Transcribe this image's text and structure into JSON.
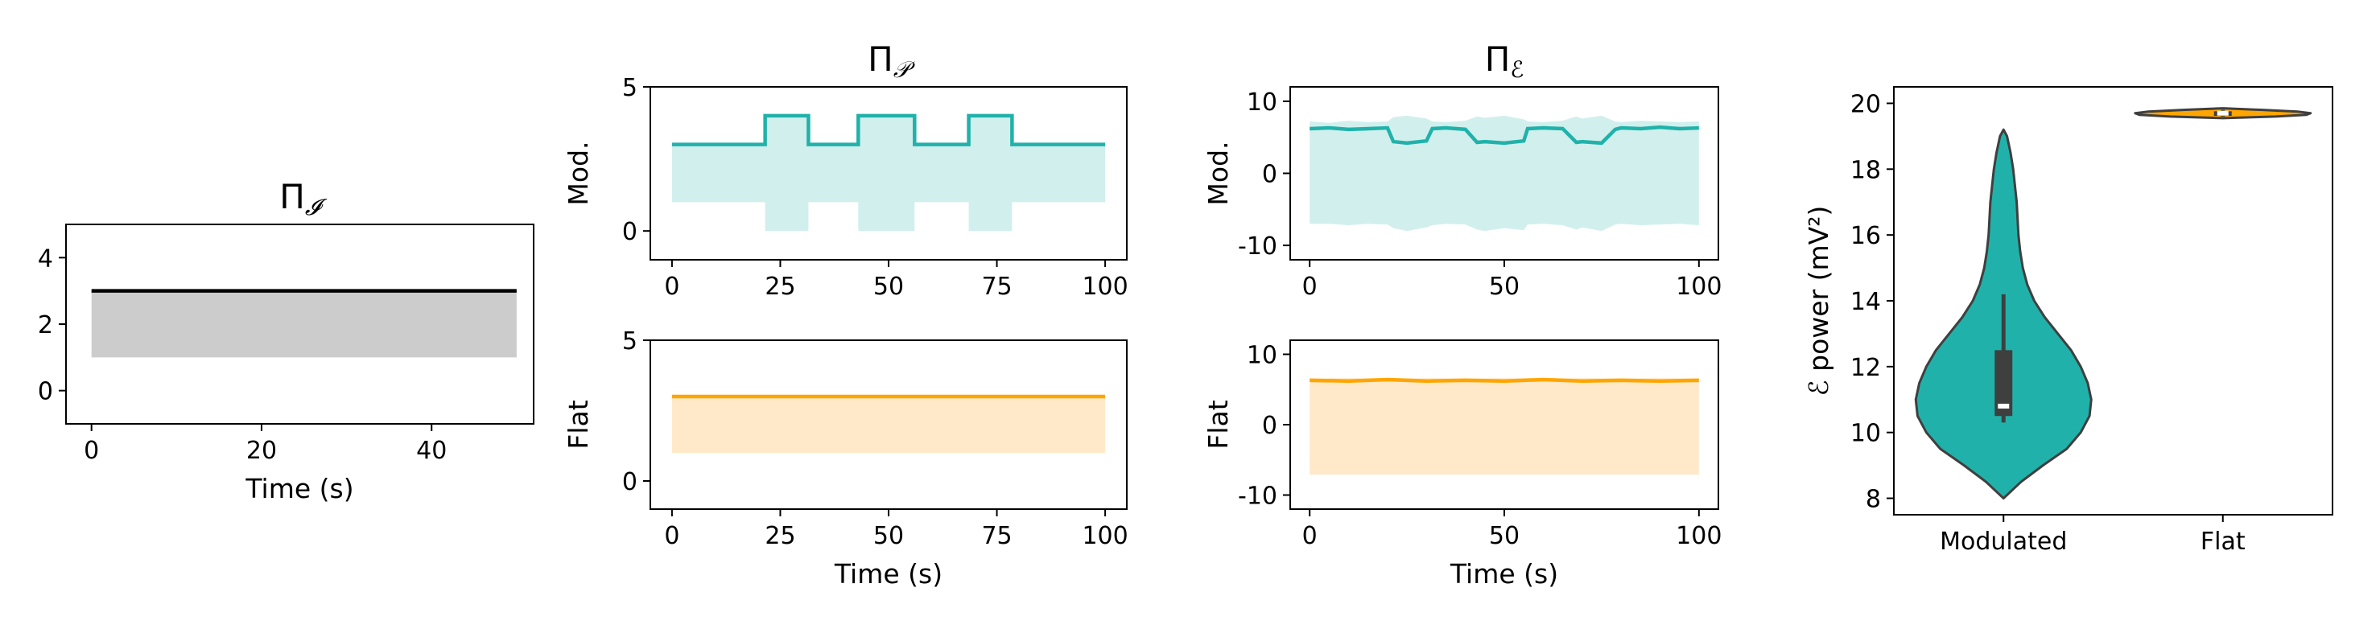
{
  "chart_data": [
    {
      "type": "line",
      "id": "pi_i",
      "title": "Π",
      "title_sub": "𝓘",
      "xlabel": "Time (s)",
      "ylabel": "",
      "xlim": [
        -3,
        52
      ],
      "ylim": [
        -1,
        5
      ],
      "xticks": [
        0,
        20,
        40
      ],
      "yticks": [
        0,
        2,
        4
      ],
      "color": "#000000",
      "band_color": "#cccccc",
      "series": [
        {
          "x": [
            0,
            50
          ],
          "y": [
            3,
            3
          ],
          "lower": [
            1,
            1
          ],
          "upper": [
            3,
            3
          ]
        }
      ]
    },
    {
      "type": "line",
      "id": "pi_p_mod",
      "title": "Π",
      "title_sub": "𝒫",
      "ylabel": "Mod.",
      "xlabel": "",
      "xlim": [
        -5,
        105
      ],
      "ylim": [
        -1,
        5
      ],
      "xticks": [
        0,
        25,
        50,
        75,
        100
      ],
      "yticks": [
        0,
        5
      ],
      "color": "#20b2aa",
      "band_color": "#d1efed",
      "series": [
        {
          "x": [
            0,
            21.5,
            21.5,
            31.5,
            31.5,
            43,
            43,
            56,
            56,
            68.5,
            68.5,
            78.5,
            78.5,
            100
          ],
          "y": [
            3,
            3,
            4,
            4,
            3,
            3,
            4,
            4,
            3,
            3,
            4,
            4,
            3,
            3
          ],
          "lower": [
            1,
            1,
            0,
            0,
            1,
            1,
            0,
            0,
            1,
            1,
            0,
            0,
            1,
            1
          ],
          "upper": [
            3,
            3,
            4,
            4,
            3,
            3,
            4,
            4,
            3,
            3,
            4,
            4,
            3,
            3
          ]
        }
      ]
    },
    {
      "type": "line",
      "id": "pi_p_flat",
      "ylabel": "Flat",
      "xlabel": "Time (s)",
      "xlim": [
        -5,
        105
      ],
      "ylim": [
        -1,
        5
      ],
      "xticks": [
        0,
        25,
        50,
        75,
        100
      ],
      "yticks": [
        0,
        5
      ],
      "color": "#ffa500",
      "band_color": "#ffe9c8",
      "series": [
        {
          "x": [
            0,
            100
          ],
          "y": [
            3,
            3
          ],
          "lower": [
            1,
            1
          ],
          "upper": [
            3,
            3
          ]
        }
      ]
    },
    {
      "type": "line",
      "id": "pi_e_mod",
      "title": "Π",
      "title_sub": "ℰ",
      "ylabel": "Mod.",
      "xlabel": "",
      "xlim": [
        -5,
        105
      ],
      "ylim": [
        -12,
        12
      ],
      "xticks": [
        0,
        50,
        100
      ],
      "yticks": [
        -10,
        0,
        10
      ],
      "color": "#20b2aa",
      "band_color": "#d1efed",
      "series": [
        {
          "x": [
            0,
            5,
            10,
            15,
            20,
            21.5,
            25,
            30,
            31.5,
            35,
            40,
            43,
            45,
            50,
            55,
            56,
            60,
            65,
            68.5,
            70,
            75,
            78.5,
            80,
            85,
            90,
            95,
            100
          ],
          "y": [
            6.2,
            6.3,
            6.1,
            6.2,
            6.3,
            4.4,
            4.2,
            4.5,
            6.2,
            6.3,
            6.1,
            4.3,
            4.4,
            4.2,
            4.5,
            6.2,
            6.3,
            6.2,
            4.3,
            4.4,
            4.2,
            6.1,
            6.3,
            6.2,
            6.4,
            6.2,
            6.3
          ],
          "lower": [
            -7,
            -7,
            -7.2,
            -7,
            -7.1,
            -7.6,
            -8,
            -7.5,
            -7.2,
            -7,
            -7.1,
            -7.8,
            -8,
            -7.6,
            -7.9,
            -7.1,
            -7,
            -7.2,
            -7.8,
            -7.5,
            -8,
            -7.1,
            -7,
            -7.2,
            -7.1,
            -7,
            -7.2
          ],
          "upper": [
            7.2,
            7.0,
            7.3,
            7.1,
            7.2,
            7.8,
            8,
            7.6,
            7.2,
            7.1,
            7.3,
            7.9,
            7.7,
            8,
            7.5,
            7.2,
            7.1,
            7.3,
            7.9,
            7.6,
            8,
            7.2,
            7.1,
            7.3,
            7.2,
            7.1,
            7.2
          ]
        }
      ]
    },
    {
      "type": "line",
      "id": "pi_e_flat",
      "ylabel": "Flat",
      "xlabel": "Time (s)",
      "xlim": [
        -5,
        105
      ],
      "ylim": [
        -12,
        12
      ],
      "xticks": [
        0,
        50,
        100
      ],
      "yticks": [
        -10,
        0,
        10
      ],
      "color": "#ffa500",
      "band_color": "#ffe9c8",
      "series": [
        {
          "x": [
            0,
            10,
            20,
            30,
            40,
            50,
            60,
            70,
            80,
            90,
            100
          ],
          "y": [
            6.3,
            6.2,
            6.4,
            6.2,
            6.3,
            6.2,
            6.4,
            6.2,
            6.3,
            6.2,
            6.3
          ],
          "lower": [
            -7.1,
            -7.1,
            -7.1,
            -7.1,
            -7.1,
            -7.1,
            -7.1,
            -7.1,
            -7.1,
            -7.1,
            -7.1
          ],
          "upper": [
            6.6,
            6.6,
            6.6,
            6.6,
            6.6,
            6.6,
            6.6,
            6.6,
            6.6,
            6.6,
            6.6
          ]
        }
      ]
    },
    {
      "type": "violin",
      "id": "power_violin",
      "categories": [
        "Modulated",
        "Flat"
      ],
      "ylabel": "ℰ power (mV²)",
      "xlabel": "",
      "ylim": [
        7.5,
        20.5
      ],
      "yticks": [
        8,
        10,
        12,
        14,
        16,
        18,
        20
      ],
      "colors": [
        "#20b2aa",
        "#ffa500"
      ],
      "violins": [
        {
          "name": "Modulated",
          "ymin": 8.0,
          "ymax": 19.2,
          "q1": 10.5,
          "median": 10.8,
          "q3": 12.5,
          "whisker_low": 10.3,
          "whisker_high": 14.2,
          "density": [
            [
              8.0,
              0.0
            ],
            [
              8.5,
              0.2
            ],
            [
              9.0,
              0.45
            ],
            [
              9.5,
              0.72
            ],
            [
              10.0,
              0.88
            ],
            [
              10.5,
              0.98
            ],
            [
              11.0,
              1.0
            ],
            [
              11.5,
              0.96
            ],
            [
              12.0,
              0.88
            ],
            [
              12.5,
              0.77
            ],
            [
              13.0,
              0.62
            ],
            [
              13.5,
              0.47
            ],
            [
              14.0,
              0.35
            ],
            [
              14.5,
              0.27
            ],
            [
              15.0,
              0.22
            ],
            [
              15.5,
              0.19
            ],
            [
              16.0,
              0.17
            ],
            [
              16.5,
              0.16
            ],
            [
              17.0,
              0.15
            ],
            [
              17.5,
              0.13
            ],
            [
              18.0,
              0.11
            ],
            [
              18.5,
              0.08
            ],
            [
              19.0,
              0.04
            ],
            [
              19.2,
              0.0
            ]
          ]
        },
        {
          "name": "Flat",
          "ymin": 19.55,
          "ymax": 19.85,
          "q1": 19.62,
          "median": 19.7,
          "q3": 19.76,
          "whisker_low": 19.6,
          "whisker_high": 19.8,
          "density": [
            [
              19.55,
              0.0
            ],
            [
              19.6,
              0.6
            ],
            [
              19.65,
              0.95
            ],
            [
              19.7,
              1.0
            ],
            [
              19.75,
              0.85
            ],
            [
              19.8,
              0.45
            ],
            [
              19.85,
              0.0
            ]
          ]
        }
      ]
    }
  ]
}
